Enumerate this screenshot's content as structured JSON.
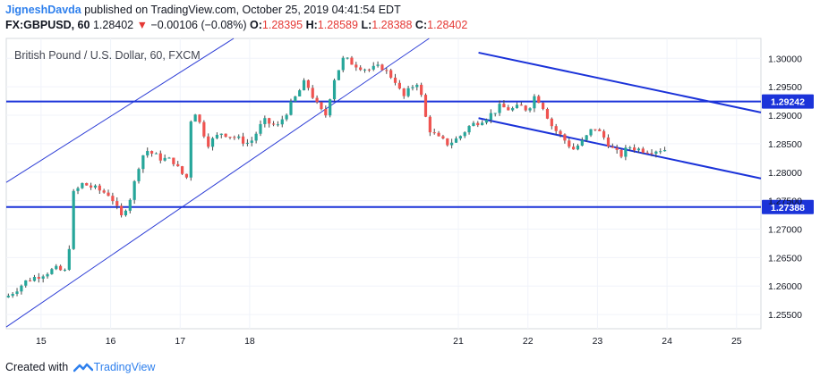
{
  "header": {
    "author": "JigneshDavda",
    "published": "published on TradingView.com, October 25, 2019 04:41:54 EDT",
    "symbol": "FX:GBPUSD, 60",
    "last_price": "1.28402",
    "change": "−0.00106 (−0.08%)",
    "ohlc": [
      {
        "label": "O:",
        "value": "1.28395"
      },
      {
        "label": "H:",
        "value": "1.28589"
      },
      {
        "label": "L:",
        "value": "1.28388"
      },
      {
        "label": "C:",
        "value": "1.28402"
      }
    ],
    "change_direction": "down"
  },
  "chart_data": {
    "type": "candlestick",
    "title": "British Pound / U.S. Dollar, 60, FXCM",
    "timeframe": "60",
    "y_range": [
      1.2525,
      1.3035
    ],
    "x_range": [
      14.5,
      25.35
    ],
    "y_ticks": [
      "1.25500",
      "1.26000",
      "1.26500",
      "1.27000",
      "1.27500",
      "1.28000",
      "1.28500",
      "1.29000",
      "1.29500",
      "1.30000"
    ],
    "x_ticks": [
      {
        "label": "15",
        "x": 15
      },
      {
        "label": "16",
        "x": 16
      },
      {
        "label": "17",
        "x": 17
      },
      {
        "label": "18",
        "x": 18
      },
      {
        "label": "21",
        "x": 21
      },
      {
        "label": "22",
        "x": 22
      },
      {
        "label": "23",
        "x": 23
      },
      {
        "label": "24",
        "x": 24
      },
      {
        "label": "25",
        "x": 25
      }
    ],
    "price_path": [
      [
        14.5,
        1.258
      ],
      [
        14.8,
        1.261
      ],
      [
        15.0,
        1.262
      ],
      [
        15.2,
        1.263
      ],
      [
        15.35,
        1.2625
      ],
      [
        15.4,
        1.266
      ],
      [
        15.45,
        1.276
      ],
      [
        15.6,
        1.278
      ],
      [
        15.8,
        1.277
      ],
      [
        16.0,
        1.276
      ],
      [
        16.15,
        1.272
      ],
      [
        16.3,
        1.276
      ],
      [
        16.4,
        1.281
      ],
      [
        16.5,
        1.284
      ],
      [
        16.7,
        1.2825
      ],
      [
        16.9,
        1.282
      ],
      [
        17.0,
        1.28
      ],
      [
        17.1,
        1.279
      ],
      [
        17.17,
        1.292
      ],
      [
        17.4,
        1.285
      ],
      [
        17.6,
        1.287
      ],
      [
        17.8,
        1.286
      ],
      [
        18.0,
        1.285
      ],
      [
        18.2,
        1.289
      ],
      [
        18.4,
        1.288
      ],
      [
        18.6,
        1.292
      ],
      [
        18.8,
        1.296
      ],
      [
        19.0,
        1.291
      ],
      [
        19.1,
        1.29
      ],
      [
        19.2,
        1.296
      ],
      [
        19.35,
        1.3
      ],
      [
        19.5,
        1.299
      ],
      [
        19.7,
        1.298
      ],
      [
        19.9,
        1.2985
      ],
      [
        20.1,
        1.296
      ],
      [
        20.2,
        1.293
      ],
      [
        20.3,
        1.2945
      ],
      [
        20.4,
        1.296
      ],
      [
        20.5,
        1.292
      ],
      [
        20.55,
        1.288
      ],
      [
        20.7,
        1.286
      ],
      [
        20.85,
        1.285
      ],
      [
        21.0,
        1.286
      ],
      [
        21.15,
        1.288
      ],
      [
        21.3,
        1.289
      ],
      [
        21.45,
        1.29
      ],
      [
        21.6,
        1.2915
      ],
      [
        21.75,
        1.291
      ],
      [
        21.9,
        1.2915
      ],
      [
        22.0,
        1.291
      ],
      [
        22.1,
        1.2935
      ],
      [
        22.2,
        1.292
      ],
      [
        22.35,
        1.288
      ],
      [
        22.5,
        1.286
      ],
      [
        22.65,
        1.284
      ],
      [
        22.8,
        1.2855
      ],
      [
        22.95,
        1.288
      ],
      [
        23.1,
        1.286
      ],
      [
        23.25,
        1.2835
      ],
      [
        23.35,
        1.283
      ],
      [
        23.45,
        1.2845
      ],
      [
        23.6,
        1.284
      ],
      [
        23.75,
        1.2838
      ],
      [
        23.9,
        1.284
      ],
      [
        24.0,
        1.284
      ]
    ],
    "last_price": 1.28402,
    "horizontal_levels": [
      {
        "value": 1.29242,
        "label": "1.29242",
        "color": "#1b33d9"
      },
      {
        "value": 1.27388,
        "label": "1.27388",
        "color": "#1b33d9"
      }
    ],
    "trendlines": [
      {
        "name": "ascending channel upper",
        "from": [
          14.5,
          1.2782
        ],
        "to": [
          17.77,
          1.3035
        ],
        "color": "#2f3fd6",
        "width": 1
      },
      {
        "name": "ascending channel lower",
        "from": [
          14.5,
          1.2528
        ],
        "to": [
          20.58,
          1.3035
        ],
        "color": "#2f3fd6",
        "width": 1
      },
      {
        "name": "descending channel upper",
        "from": [
          21.29,
          1.301
        ],
        "to": [
          25.35,
          1.2905
        ],
        "color": "#1b33d9",
        "width": 2
      },
      {
        "name": "descending channel lower",
        "from": [
          21.29,
          1.2895
        ],
        "to": [
          25.35,
          1.2789
        ],
        "color": "#1b33d9",
        "width": 2
      }
    ],
    "colors": {
      "up": "#26a69a",
      "down": "#ef5350",
      "wick": "#4a4a4a",
      "grid": "#f0f3fa",
      "axis_text": "#131722",
      "price_bg": "#1b33d9",
      "price_text": "#ffffff"
    },
    "grid": true
  },
  "footer": {
    "created_with": "Created with",
    "brand": "TradingView"
  }
}
